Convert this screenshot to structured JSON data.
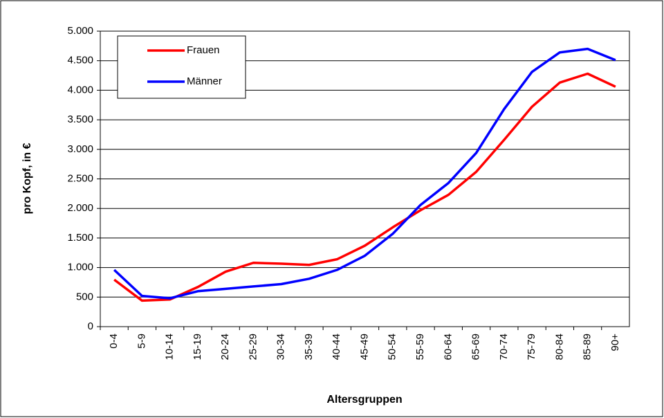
{
  "chart_data": {
    "type": "line",
    "x_label": "Altersgruppen",
    "y_label": "pro Kopf, in €",
    "categories": [
      "0-4",
      "5-9",
      "10-14",
      "15-19",
      "20-24",
      "25-29",
      "30-34",
      "35-39",
      "40-44",
      "45-49",
      "50-54",
      "55-59",
      "60-64",
      "65-69",
      "70-74",
      "75-79",
      "80-84",
      "85-89",
      "90+"
    ],
    "series": [
      {
        "name": "Frauen",
        "color": "#ff0000",
        "values": [
          795,
          440,
          460,
          670,
          930,
          1080,
          1065,
          1045,
          1140,
          1370,
          1680,
          1970,
          2230,
          2620,
          3160,
          3720,
          4130,
          4280,
          4060
        ]
      },
      {
        "name": "Männer",
        "color": "#0000ff",
        "values": [
          960,
          520,
          480,
          600,
          640,
          680,
          720,
          810,
          960,
          1200,
          1570,
          2060,
          2430,
          2940,
          3680,
          4310,
          4640,
          4700,
          4510
        ]
      }
    ],
    "ylim": [
      0,
      5000
    ],
    "yticks": [
      0,
      500,
      {
        "value": 1000,
        "label": "1.000"
      },
      {
        "value": 1500,
        "label": "1.500"
      },
      {
        "value": 2000,
        "label": "2.000"
      },
      {
        "value": 2500,
        "label": "2.500"
      },
      {
        "value": 3000,
        "label": "3.000"
      },
      {
        "value": 3500,
        "label": "3.500"
      },
      {
        "value": 4000,
        "label": "4.000"
      },
      {
        "value": 4500,
        "label": "4.500"
      },
      {
        "value": 5000,
        "label": "5.000"
      }
    ],
    "grid": true,
    "legend": "upper left"
  }
}
